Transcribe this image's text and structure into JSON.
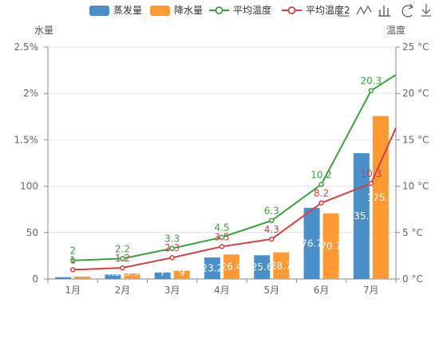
{
  "colors": {
    "evaporation": "#4a8fc8",
    "precipitation": "#ff9933",
    "temp_avg": "#3aa23a",
    "temp_avg2": "#d24040",
    "grid": "#e6e6e6",
    "axis": "#888888"
  },
  "toolbox": [
    "area-zoom-icon",
    "line-chart-icon",
    "bar-chart-icon",
    "refresh-icon",
    "download-icon"
  ],
  "chart_data": {
    "type": "bar",
    "categories": [
      "1月",
      "2月",
      "3月",
      "4月",
      "5月",
      "6月",
      "7月"
    ],
    "series": [
      {
        "name": "蒸发量",
        "type": "bar",
        "axis": "left",
        "values": [
          2.0,
          4.9,
          7.0,
          23.2,
          25.6,
          76.7,
          135.6
        ],
        "labels": [
          "2",
          "4.9",
          "7",
          "23.2",
          "25.6",
          "76.7",
          "135.6"
        ]
      },
      {
        "name": "降水量",
        "type": "bar",
        "axis": "left",
        "values": [
          2.6,
          5.9,
          9.0,
          26.4,
          28.7,
          70.7,
          175.6
        ],
        "labels": [
          "2.6",
          "5.9",
          "9",
          "26.4",
          "28.7",
          "70.7",
          "175.6"
        ]
      },
      {
        "name": "平均温度",
        "type": "line",
        "axis": "right",
        "values": [
          2.0,
          2.2,
          3.3,
          4.5,
          6.3,
          10.2,
          20.3
        ],
        "labels": [
          "2",
          "2.2",
          "3.3",
          "4.5",
          "6.3",
          "10.2",
          "20.3"
        ]
      },
      {
        "name": "平均温度2",
        "type": "line",
        "axis": "right",
        "values": [
          1.0,
          1.2,
          2.3,
          3.5,
          4.3,
          8.2,
          10.3
        ],
        "labels": [
          "1",
          "1.2",
          "2.3",
          "3.5",
          "4.3",
          "8.2",
          "10.3"
        ]
      }
    ],
    "y_left": {
      "name": "水量",
      "ticks": [
        "0",
        "50",
        "100",
        "1.5%",
        "2%",
        "2.5%"
      ]
    },
    "y_right": {
      "name": "温度",
      "ticks": [
        "0 °C",
        "5 °C",
        "10 °C",
        "15 °C",
        "20 °C",
        "25 °C"
      ],
      "range": [
        0,
        25
      ]
    },
    "grid": true,
    "legend": "top-right"
  }
}
